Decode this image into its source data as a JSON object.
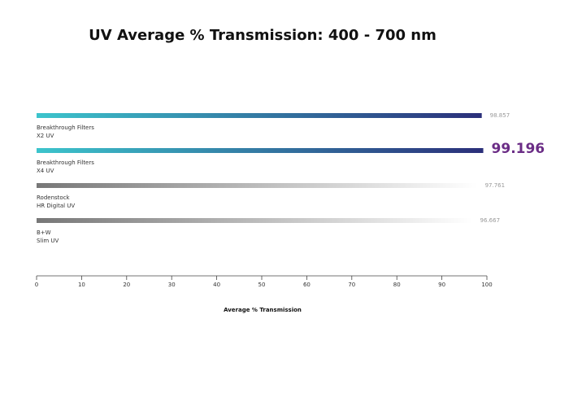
{
  "chart_data": {
    "type": "barh",
    "title": "UV Average % Transmission: 400 - 700 nm",
    "x_label": "Average % Transmission",
    "categories": [
      [
        "Breakthrough Filters",
        "X2 UV"
      ],
      [
        "Breakthrough Filters",
        "X4 UV"
      ],
      [
        "Rodenstock",
        "HR Digital UV"
      ],
      [
        "B+W",
        "Slim UV"
      ]
    ],
    "values": [
      98.857,
      99.196,
      97.761,
      96.667
    ],
    "bar_gradients": [
      [
        "#3cc4cc",
        "#2b2f7a"
      ],
      [
        "#3cc4cc",
        "#2b2f7a"
      ],
      [
        "#777777",
        "#ffffff"
      ],
      [
        "#777777",
        "#ffffff"
      ]
    ],
    "highlight": 1,
    "xlim": [
      0,
      100
    ],
    "xticks": [
      0,
      10,
      20,
      30,
      40,
      50,
      60,
      70,
      80,
      90,
      100
    ]
  }
}
